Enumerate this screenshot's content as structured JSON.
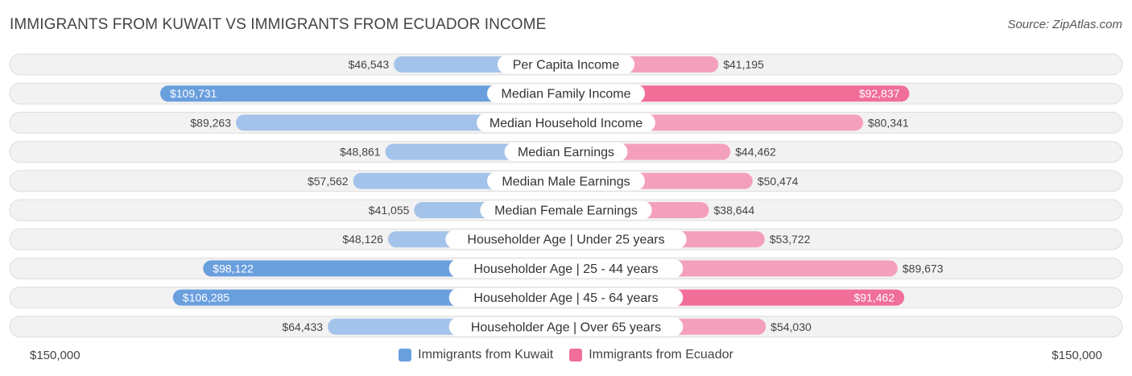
{
  "title": "IMMIGRANTS FROM KUWAIT VS IMMIGRANTS FROM ECUADOR INCOME",
  "source": "Source: ZipAtlas.com",
  "colors": {
    "left_light": "#a4c3ea",
    "left_dark": "#6a9fde",
    "right_light": "#f4a0bc",
    "right_dark": "#f06e98",
    "row_bg": "#f2f2f2",
    "row_border": "#dddddd"
  },
  "chart_data": {
    "type": "bar",
    "orientation": "horizontal-diverging",
    "max_value": 150000,
    "axis_left_label": "$150,000",
    "axis_right_label": "$150,000",
    "categories": [
      "Per Capita Income",
      "Median Family Income",
      "Median Household Income",
      "Median Earnings",
      "Median Male Earnings",
      "Median Female Earnings",
      "Householder Age | Under 25 years",
      "Householder Age | 25 - 44 years",
      "Householder Age | 45 - 64 years",
      "Householder Age | Over 65 years"
    ],
    "series": [
      {
        "name": "Immigrants from Kuwait",
        "side": "left",
        "values": [
          46543,
          109731,
          89263,
          48861,
          57562,
          41055,
          48126,
          98122,
          106285,
          64433
        ],
        "labels": [
          "$46,543",
          "$109,731",
          "$89,263",
          "$48,861",
          "$57,562",
          "$41,055",
          "$48,126",
          "$98,122",
          "$106,285",
          "$64,433"
        ]
      },
      {
        "name": "Immigrants from Ecuador",
        "side": "right",
        "values": [
          41195,
          92837,
          80341,
          44462,
          50474,
          38644,
          53722,
          89673,
          91462,
          54030
        ],
        "labels": [
          "$41,195",
          "$92,837",
          "$80,341",
          "$44,462",
          "$50,474",
          "$38,644",
          "$53,722",
          "$89,673",
          "$91,462",
          "$54,030"
        ]
      }
    ],
    "legend": "bottom-center"
  }
}
